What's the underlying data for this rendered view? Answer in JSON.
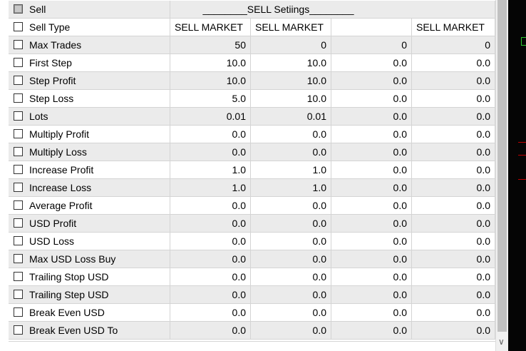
{
  "header": {
    "label": "Sell",
    "title": "________SELL Setiings________"
  },
  "sell_type": {
    "label": "Sell Type",
    "values": [
      "SELL MARKET",
      "SELL MARKET",
      "",
      "SELL MARKET"
    ]
  },
  "rows": [
    {
      "label": "Max Trades",
      "values": [
        "50",
        "0",
        "0",
        "0"
      ]
    },
    {
      "label": "First Step",
      "values": [
        "10.0",
        "10.0",
        "0.0",
        "0.0"
      ]
    },
    {
      "label": "Step Profit",
      "values": [
        "10.0",
        "10.0",
        "0.0",
        "0.0"
      ]
    },
    {
      "label": "Step Loss",
      "values": [
        "5.0",
        "10.0",
        "0.0",
        "0.0"
      ]
    },
    {
      "label": "Lots",
      "values": [
        "0.01",
        "0.01",
        "0.0",
        "0.0"
      ]
    },
    {
      "label": "Multiply Profit",
      "values": [
        "0.0",
        "0.0",
        "0.0",
        "0.0"
      ]
    },
    {
      "label": "Multiply Loss",
      "values": [
        "0.0",
        "0.0",
        "0.0",
        "0.0"
      ]
    },
    {
      "label": "Increase Profit",
      "values": [
        "1.0",
        "1.0",
        "0.0",
        "0.0"
      ]
    },
    {
      "label": "Increase Loss",
      "values": [
        "1.0",
        "1.0",
        "0.0",
        "0.0"
      ]
    },
    {
      "label": "Average Profit",
      "values": [
        "0.0",
        "0.0",
        "0.0",
        "0.0"
      ]
    },
    {
      "label": "USD Profit",
      "values": [
        "0.0",
        "0.0",
        "0.0",
        "0.0"
      ]
    },
    {
      "label": "USD Loss",
      "values": [
        "0.0",
        "0.0",
        "0.0",
        "0.0"
      ]
    },
    {
      "label": "Max USD Loss Buy",
      "values": [
        "0.0",
        "0.0",
        "0.0",
        "0.0"
      ]
    },
    {
      "label": "Trailing Stop USD",
      "values": [
        "0.0",
        "0.0",
        "0.0",
        "0.0"
      ]
    },
    {
      "label": "Trailing Step USD",
      "values": [
        "0.0",
        "0.0",
        "0.0",
        "0.0"
      ]
    },
    {
      "label": "Break Even USD",
      "values": [
        "0.0",
        "0.0",
        "0.0",
        "0.0"
      ]
    },
    {
      "label": "Break Even USD To",
      "values": [
        "0.0",
        "0.0",
        "0.0",
        "0.0"
      ]
    }
  ],
  "scrollbar": {
    "down_arrow": "chevron-down-icon"
  }
}
